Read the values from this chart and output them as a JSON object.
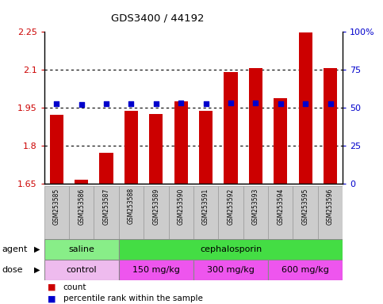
{
  "title": "GDS3400 / 44192",
  "samples": [
    "GSM253585",
    "GSM253586",
    "GSM253587",
    "GSM253588",
    "GSM253589",
    "GSM253590",
    "GSM253591",
    "GSM253592",
    "GSM253593",
    "GSM253594",
    "GSM253595",
    "GSM253596"
  ],
  "bar_values": [
    1.92,
    1.665,
    1.77,
    1.935,
    1.925,
    1.975,
    1.935,
    2.09,
    2.105,
    1.985,
    2.245,
    2.105
  ],
  "dot_values": [
    1.965,
    1.96,
    1.963,
    1.965,
    1.964,
    1.966,
    1.965,
    1.966,
    1.966,
    1.965,
    1.965,
    1.965
  ],
  "ymin": 1.65,
  "ymax": 2.25,
  "yticks_left": [
    1.65,
    1.8,
    1.95,
    2.1,
    2.25
  ],
  "yticks_right": [
    0,
    25,
    50,
    75,
    100
  ],
  "bar_color": "#cc0000",
  "dot_color": "#0000cc",
  "agent_groups": [
    {
      "label": "saline",
      "start": 0,
      "end": 3,
      "color": "#88ee88"
    },
    {
      "label": "cephalosporin",
      "start": 3,
      "end": 12,
      "color": "#44dd44"
    }
  ],
  "dose_groups": [
    {
      "label": "control",
      "start": 0,
      "end": 3,
      "color": "#eebBee"
    },
    {
      "label": "150 mg/kg",
      "start": 3,
      "end": 6,
      "color": "#ee55ee"
    },
    {
      "label": "300 mg/kg",
      "start": 6,
      "end": 9,
      "color": "#ee55ee"
    },
    {
      "label": "600 mg/kg",
      "start": 9,
      "end": 12,
      "color": "#ee55ee"
    }
  ],
  "grid_lines": [
    1.8,
    1.95,
    2.1
  ],
  "left_axis_color": "#cc0000",
  "right_axis_color": "#0000cc"
}
